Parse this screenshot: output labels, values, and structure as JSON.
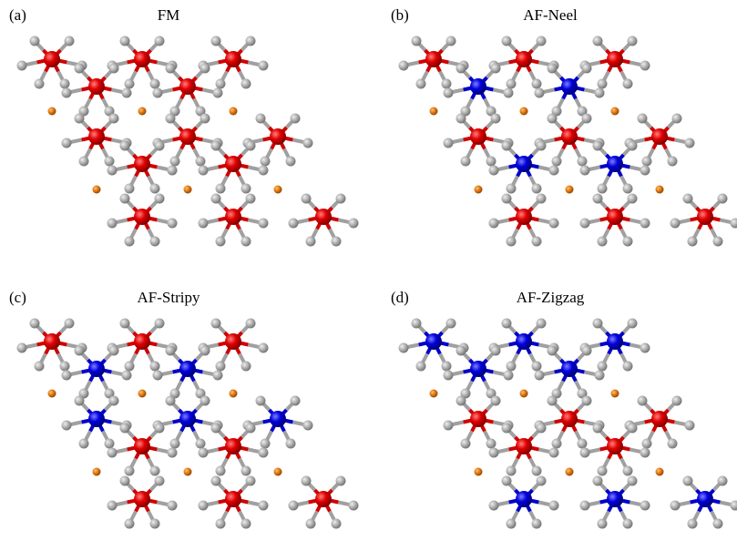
{
  "panels": [
    {
      "label": "(a)",
      "title": "FM"
    },
    {
      "label": "(b)",
      "title": "AF-Neel"
    },
    {
      "label": "(c)",
      "title": "AF-Stripy"
    },
    {
      "label": "(d)",
      "title": "AF-Zigzag"
    }
  ]
}
